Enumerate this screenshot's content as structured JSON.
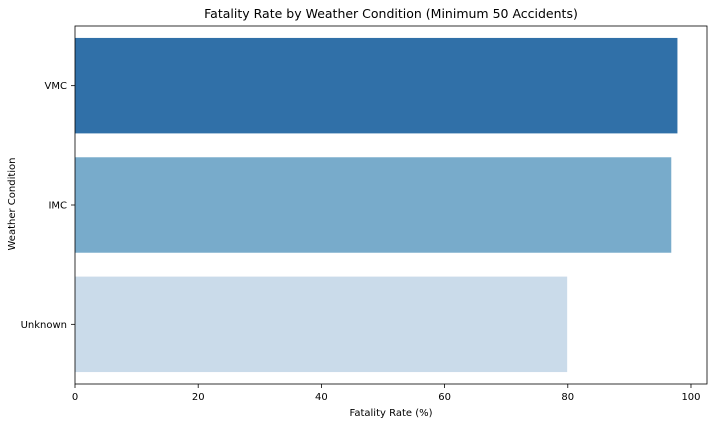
{
  "chart_data": {
    "type": "bar",
    "orientation": "horizontal",
    "title": "Fatality Rate by Weather Condition (Minimum 50 Accidents)",
    "xlabel": "Fatality Rate (%)",
    "ylabel": "Weather Condition",
    "categories": [
      "VMC",
      "IMC",
      "Unknown"
    ],
    "values": [
      97.8,
      96.8,
      79.9
    ],
    "colors": [
      "#3070a8",
      "#78abcb",
      "#cadbea"
    ],
    "xlim": [
      0,
      102.6
    ],
    "xticks": [
      0,
      20,
      40,
      60,
      80,
      100
    ],
    "grid": false,
    "legend": "none"
  }
}
